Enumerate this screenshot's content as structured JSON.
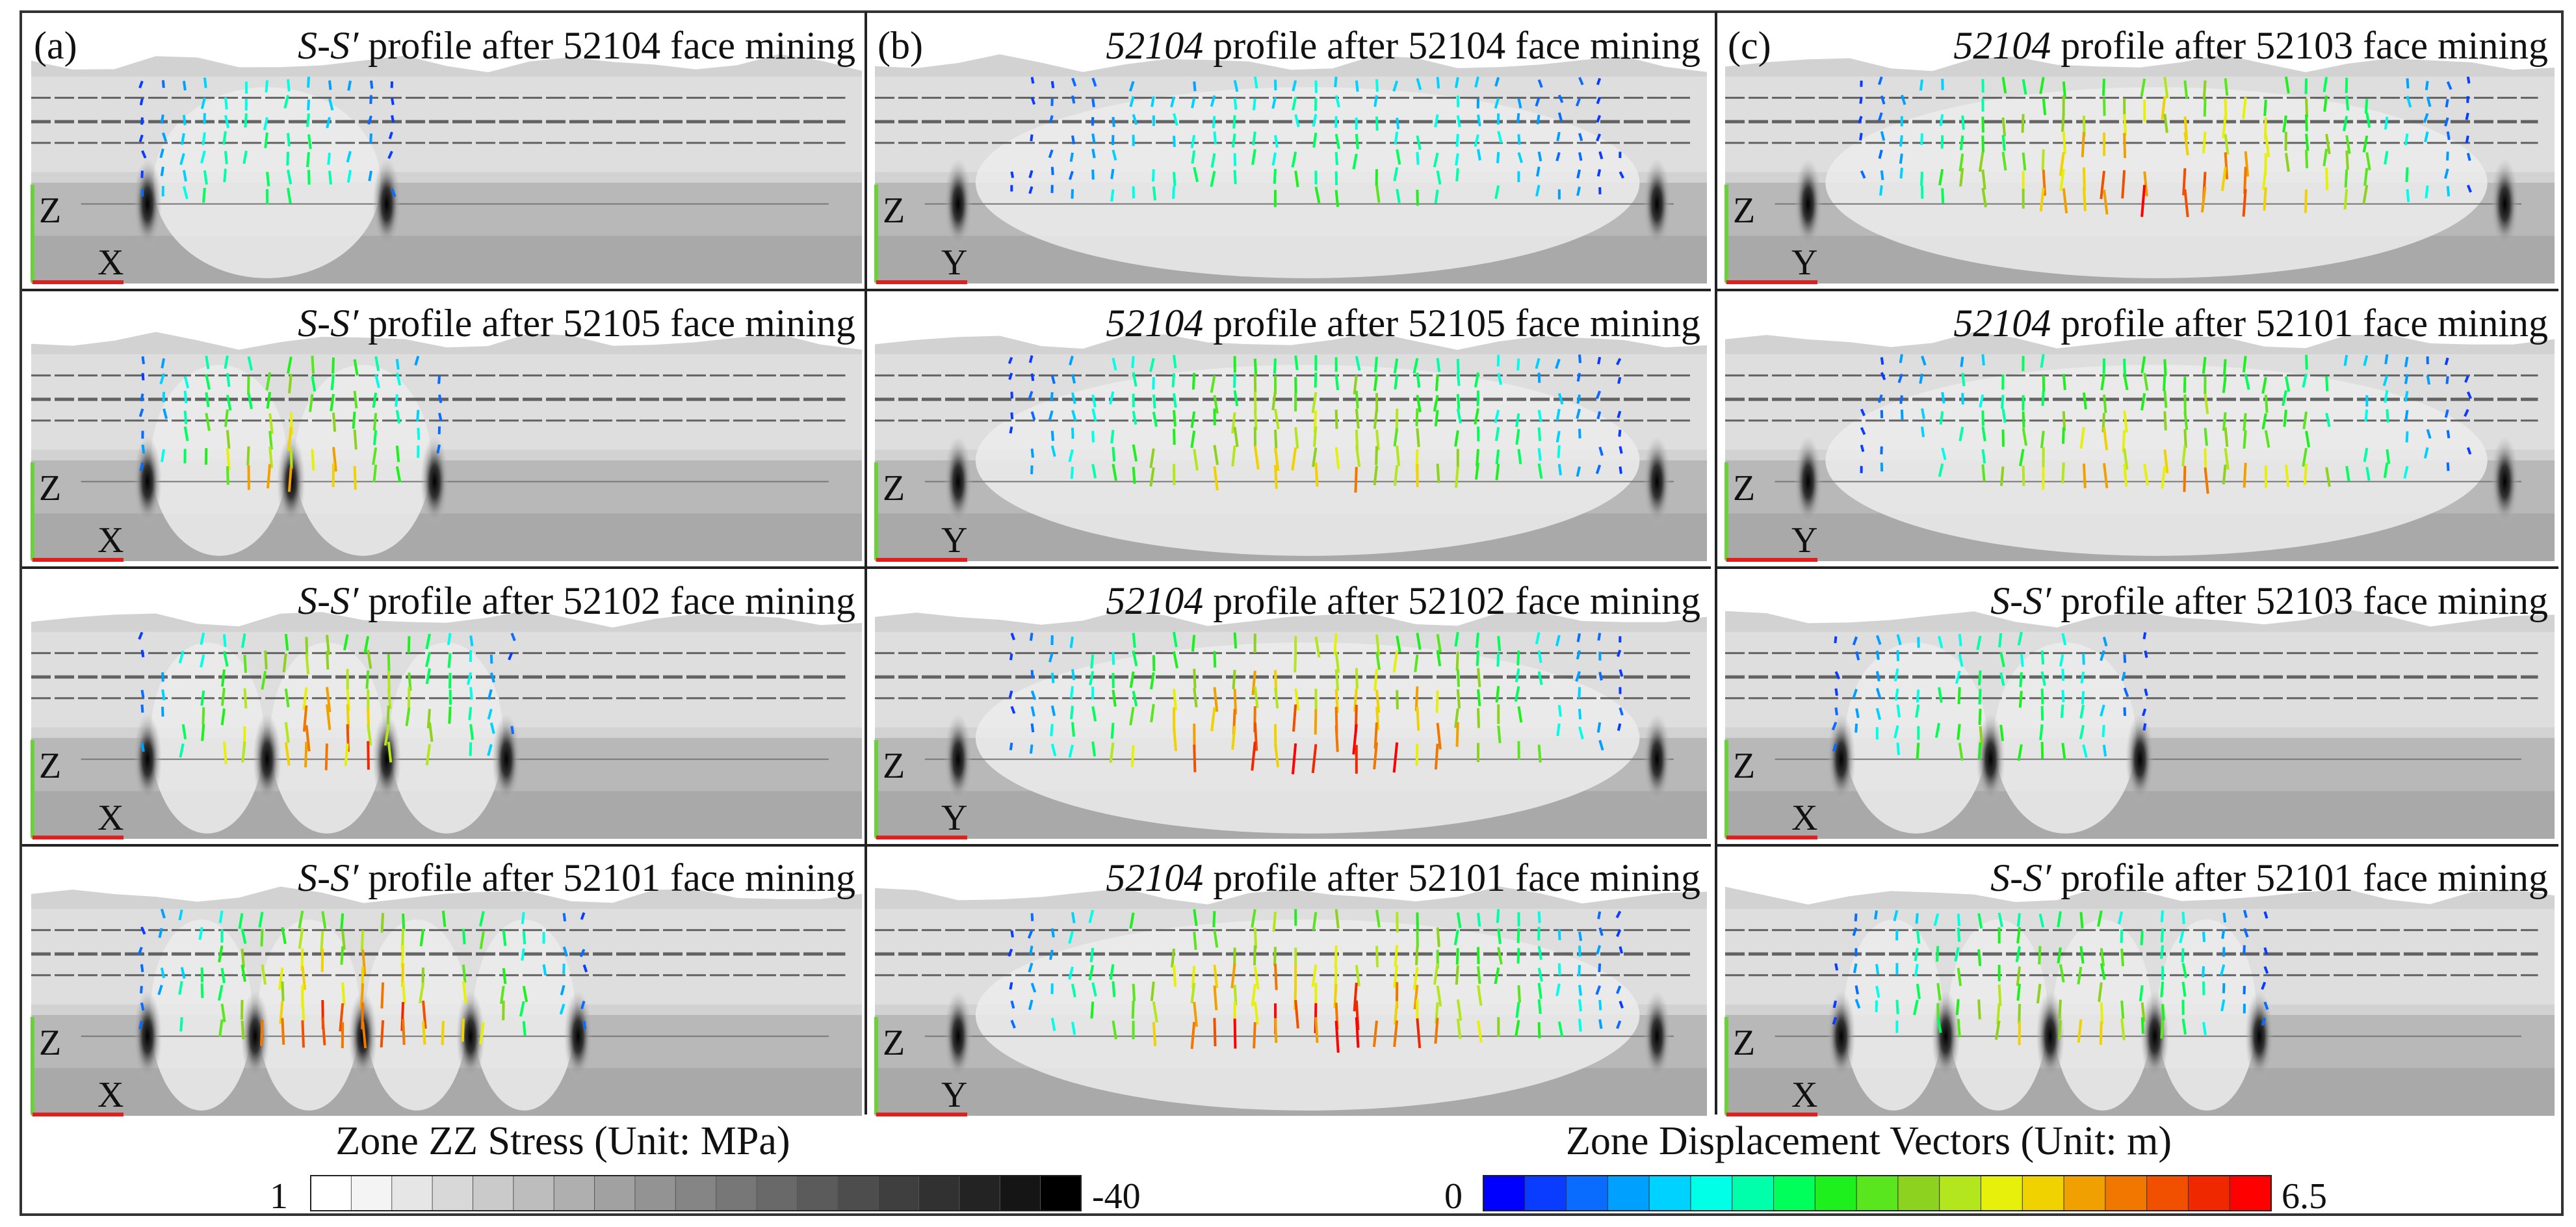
{
  "columns": [
    {
      "label": "(a)",
      "axis": {
        "vertical": "Z",
        "horizontal": "X"
      },
      "panels": [
        {
          "title_italic": "S-S′",
          "title_rest": " profile after 52104 face mining",
          "goafs": 1,
          "vmax": 3.0,
          "extent": 0.4
        },
        {
          "title_italic": "S-S′",
          "title_rest": " profile after 52105 face mining",
          "goafs": 2,
          "vmax": 5.2,
          "extent": 0.48
        },
        {
          "title_italic": "S-S′",
          "title_rest": " profile after 52102 face mining",
          "goafs": 3,
          "vmax": 5.8,
          "extent": 0.6
        },
        {
          "title_italic": "S-S′",
          "title_rest": " profile after 52101 face mining",
          "goafs": 4,
          "vmax": 6.2,
          "extent": 0.72
        }
      ]
    },
    {
      "label": "(b)",
      "axis": {
        "vertical": "Z",
        "horizontal": "Y"
      },
      "panels": [
        {
          "title_italic": "52104",
          "title_rest": " profile after 52104 face mining",
          "goafs": 1,
          "vmax": 3.0,
          "extent": 0.96
        },
        {
          "title_italic": "52104",
          "title_rest": " profile after 52105 face mining",
          "goafs": 1,
          "vmax": 5.0,
          "extent": 0.96
        },
        {
          "title_italic": "52104",
          "title_rest": " profile after 52102 face mining",
          "goafs": 1,
          "vmax": 6.4,
          "extent": 0.96
        },
        {
          "title_italic": "52104",
          "title_rest": " profile after 52101 face mining",
          "goafs": 1,
          "vmax": 6.5,
          "extent": 0.96
        }
      ]
    },
    {
      "label": "(c)",
      "axis": {
        "vertical": "Z",
        "horizontal": "Y"
      },
      "panels": [
        {
          "title_italic": "52104",
          "title_rest": " profile after 52103 face mining",
          "goafs": 1,
          "vmax": 6.3,
          "extent": 0.96,
          "axis_h": "Y"
        },
        {
          "title_italic": "52104",
          "title_rest": " profile after 52101 face mining",
          "goafs": 1,
          "vmax": 5.0,
          "extent": 0.96,
          "axis_h": "Y"
        },
        {
          "title_italic": "S-S′",
          "title_rest": " profile after 52103 face mining",
          "goafs": 2,
          "vmax": 3.6,
          "extent": 0.5,
          "axis_h": "X"
        },
        {
          "title_italic": "S-S′",
          "title_rest": " profile after 52101 face mining",
          "goafs": 4,
          "vmax": 4.6,
          "extent": 0.7,
          "axis_h": "X"
        }
      ]
    }
  ],
  "stress_legend": {
    "title": "Zone ZZ Stress (Unit: MPa)",
    "min_label": "1",
    "max_label": "-40",
    "colors": [
      "#ffffff",
      "#f4f4f4",
      "#e6e6e6",
      "#d8d8d8",
      "#cacaca",
      "#bdbdbd",
      "#afafaf",
      "#a1a1a1",
      "#939393",
      "#858585",
      "#777777",
      "#696969",
      "#5b5b5b",
      "#4d4d4d",
      "#3f3f3f",
      "#313131",
      "#232323",
      "#151515",
      "#000000"
    ]
  },
  "displacement_legend": {
    "title": "Zone Displacement Vectors  (Unit: m)",
    "min_label": "0",
    "max_label": "6.5",
    "colors": [
      "#0000ff",
      "#0a3cff",
      "#0a6cff",
      "#00a0ff",
      "#00d2ff",
      "#00ffe6",
      "#00ffaa",
      "#00ff5a",
      "#1ef01e",
      "#5ae61e",
      "#8cd21e",
      "#b4e61e",
      "#e6f00a",
      "#f0d200",
      "#f0a000",
      "#f07800",
      "#f05000",
      "#f02800",
      "#ff0000"
    ]
  }
}
